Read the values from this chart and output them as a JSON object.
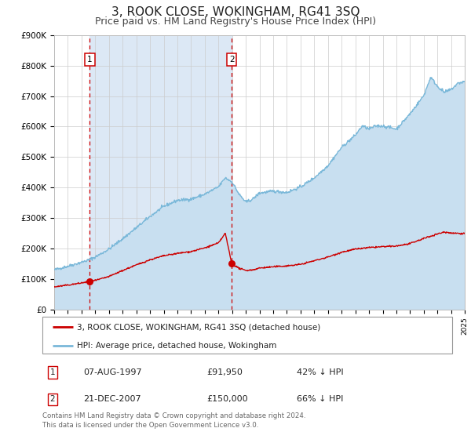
{
  "title": "3, ROOK CLOSE, WOKINGHAM, RG41 3SQ",
  "subtitle": "Price paid vs. HM Land Registry's House Price Index (HPI)",
  "ylim": [
    0,
    900000
  ],
  "yticks": [
    0,
    100000,
    200000,
    300000,
    400000,
    500000,
    600000,
    700000,
    800000,
    900000
  ],
  "ytick_labels": [
    "£0",
    "£100K",
    "£200K",
    "£300K",
    "£400K",
    "£500K",
    "£600K",
    "£700K",
    "£800K",
    "£900K"
  ],
  "sale1_date": 1997.6,
  "sale1_price": 91950,
  "sale2_date": 2007.97,
  "sale2_price": 150000,
  "sale_color": "#cc0000",
  "hpi_color": "#7ab8d9",
  "hpi_fill_color": "#c8dff0",
  "shade_color": "#dce8f5",
  "background_color": "#ffffff",
  "grid_color": "#cccccc",
  "legend_label_red": "3, ROOK CLOSE, WOKINGHAM, RG41 3SQ (detached house)",
  "legend_label_blue": "HPI: Average price, detached house, Wokingham",
  "table_row1": [
    "1",
    "07-AUG-1997",
    "£91,950",
    "42% ↓ HPI"
  ],
  "table_row2": [
    "2",
    "21-DEC-2007",
    "£150,000",
    "66% ↓ HPI"
  ],
  "footer": "Contains HM Land Registry data © Crown copyright and database right 2024.\nThis data is licensed under the Open Government Licence v3.0.",
  "title_fontsize": 11,
  "subtitle_fontsize": 9,
  "tick_fontsize": 7.5
}
